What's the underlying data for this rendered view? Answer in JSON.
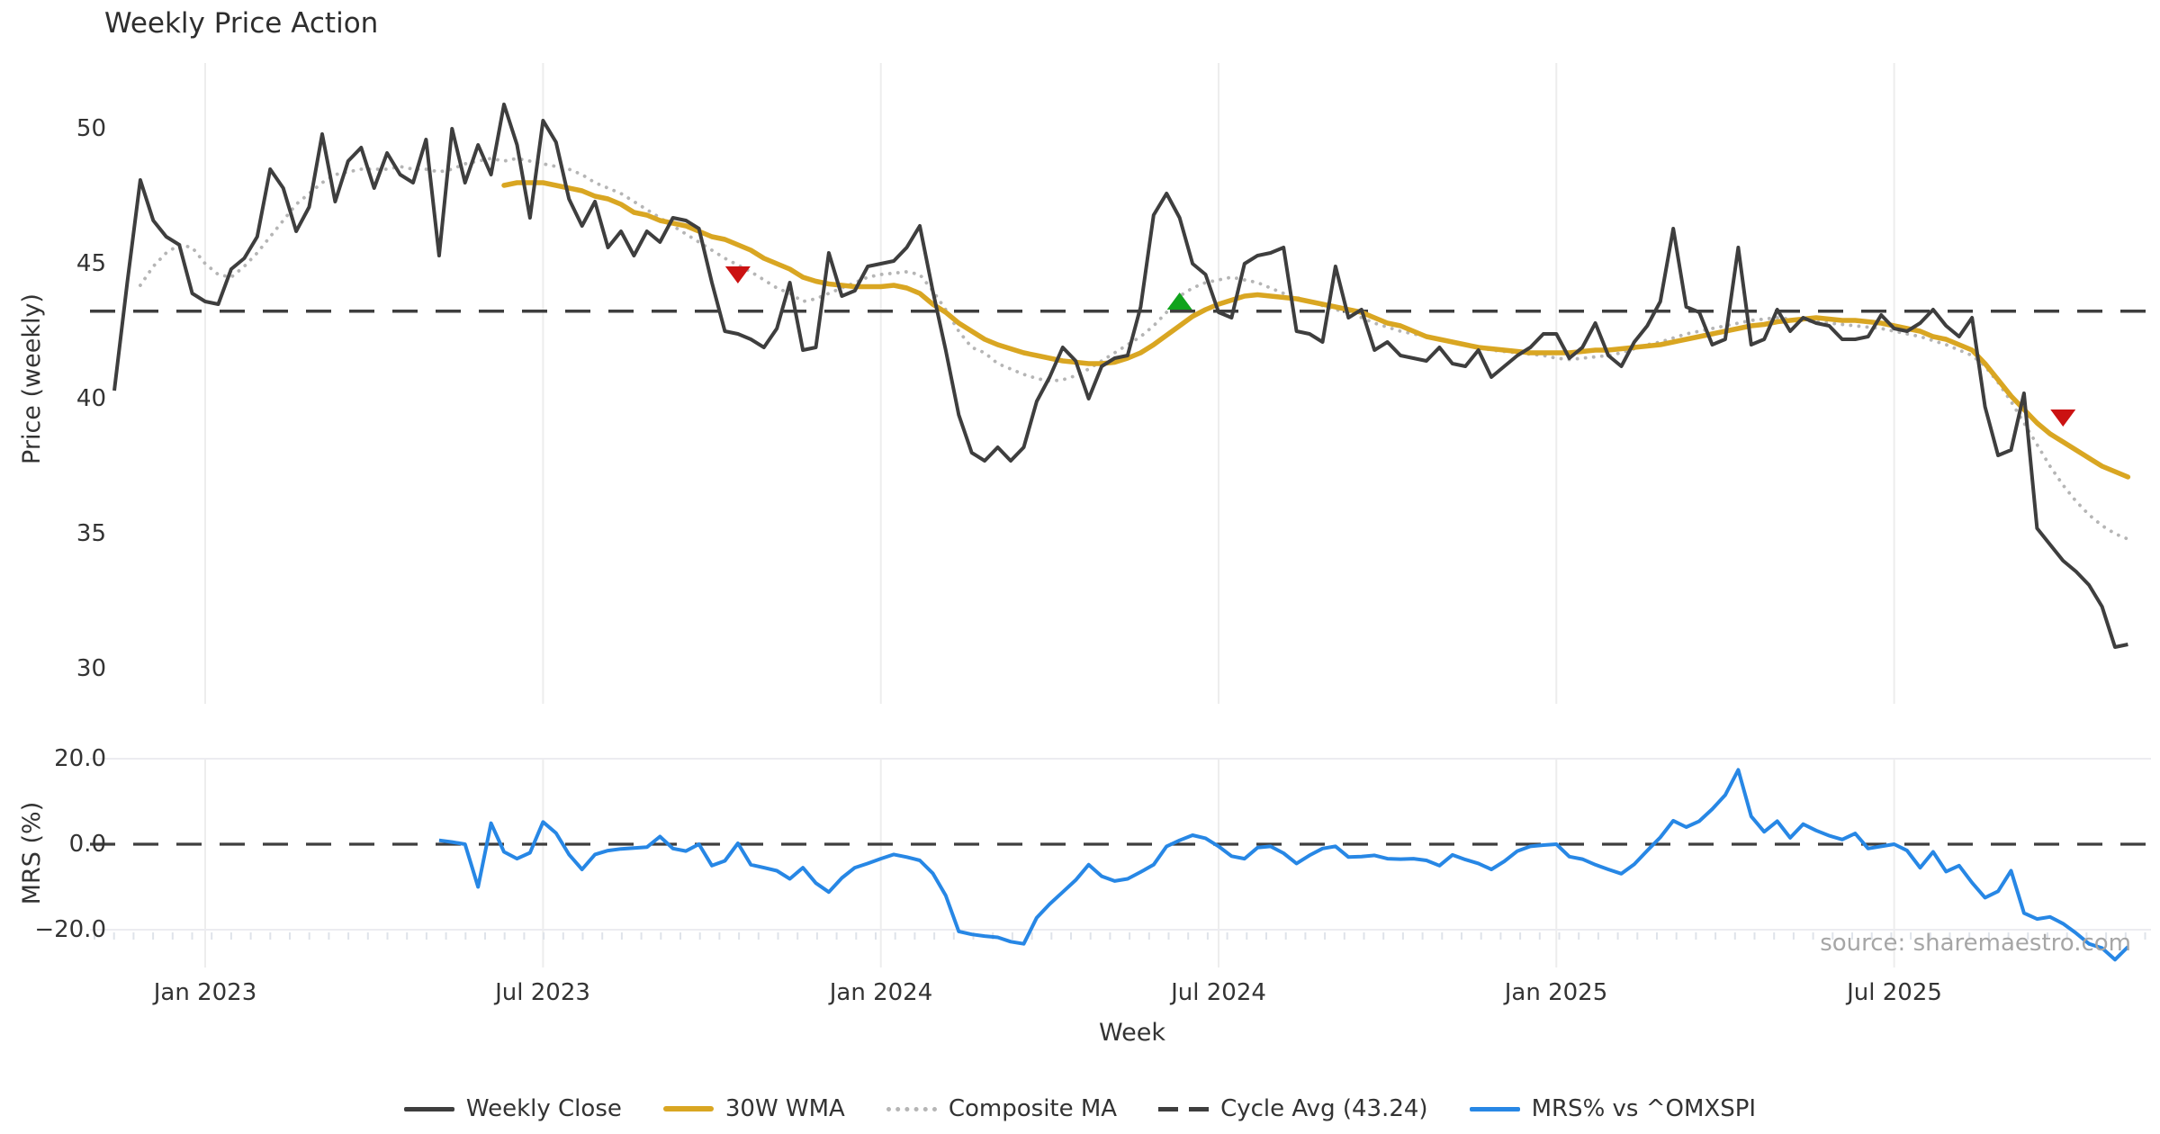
{
  "title": "Weekly Price Action",
  "source_note": "source: sharemaestro.com",
  "colors": {
    "weekly_close": "#3e3e3e",
    "wma30": "#d9a622",
    "composite_ma": "#b5b5b5",
    "cycle_avg": "#3e3e3e",
    "mrs": "#2787e5",
    "sell_marker": "#cb1212",
    "buy_marker": "#10a31c",
    "gridline": "#ededed",
    "minor_tick": "#dfe3ea",
    "text": "#333333",
    "source_text": "#a6a6a6"
  },
  "axes": {
    "price": {
      "label": "Price (weekly)",
      "tick_labels": [
        "50",
        "45",
        "40",
        "35",
        "30"
      ]
    },
    "mrs": {
      "label": "MRS (%)",
      "tick_labels": [
        "20.0",
        "0.0",
        "−20.0"
      ]
    },
    "week": {
      "label": "Week",
      "tick_labels": [
        "Jan 2023",
        "Jul 2023",
        "Jan 2024",
        "Jul 2024",
        "Jan 2025",
        "Jul 2025"
      ]
    }
  },
  "legend": {
    "items": [
      {
        "label": "Weekly Close",
        "style": "solid-dark"
      },
      {
        "label": "30W WMA",
        "style": "solid-gold"
      },
      {
        "label": "Composite MA",
        "style": "dotted-gray"
      },
      {
        "label": "Cycle Avg (43.24)",
        "style": "dashed-dark"
      },
      {
        "label": "MRS% vs ^OMXSPI",
        "style": "solid-blue"
      }
    ]
  },
  "chart_data": {
    "type": "line",
    "title": "Weekly Price Action",
    "x": {
      "label": "Week",
      "unit": "weeks",
      "total_weeks": 156,
      "tick_weeks": [
        7,
        33,
        59,
        85,
        111,
        137
      ],
      "tick_labels": [
        "Jan 2023",
        "Jul 2023",
        "Jan 2024",
        "Jul 2024",
        "Jan 2025",
        "Jul 2025"
      ]
    },
    "panels": [
      {
        "id": "price",
        "ylabel": "Price (weekly)",
        "ylim": [
          28.7,
          52.4
        ],
        "yticks": [
          30,
          35,
          40,
          45,
          50
        ],
        "cycle_avg": 43.24,
        "series": [
          {
            "name": "Weekly Close",
            "start_week": 0,
            "values": [
              40.3,
              44.3,
              48.1,
              46.6,
              46.0,
              45.7,
              43.9,
              43.6,
              43.5,
              44.8,
              45.2,
              46.0,
              48.5,
              47.8,
              46.2,
              47.1,
              49.8,
              47.3,
              48.8,
              49.3,
              47.8,
              49.1,
              48.3,
              48.0,
              49.6,
              45.3,
              50.0,
              48.0,
              49.4,
              48.3,
              50.9,
              49.4,
              46.7,
              50.3,
              49.5,
              47.4,
              46.4,
              47.3,
              45.6,
              46.2,
              45.3,
              46.2,
              45.8,
              46.7,
              46.6,
              46.3,
              44.3,
              42.5,
              42.4,
              42.2,
              41.9,
              42.6,
              44.3,
              41.8,
              41.9,
              45.4,
              43.8,
              44.0,
              44.9,
              45.0,
              45.1,
              45.6,
              46.4,
              44.0,
              41.8,
              39.4,
              38.0,
              37.7,
              38.2,
              37.7,
              38.2,
              39.9,
              40.8,
              41.9,
              41.4,
              40.0,
              41.2,
              41.5,
              41.6,
              43.4,
              46.8,
              47.6,
              46.7,
              45.0,
              44.6,
              43.2,
              43.0,
              45.0,
              45.3,
              45.4,
              45.6,
              42.5,
              42.4,
              42.1,
              44.9,
              43.0,
              43.3,
              41.8,
              42.1,
              41.6,
              41.5,
              41.4,
              41.9,
              41.3,
              41.2,
              41.8,
              40.8,
              41.2,
              41.6,
              41.9,
              42.4,
              42.4,
              41.5,
              41.9,
              42.8,
              41.6,
              41.2,
              42.1,
              42.7,
              43.6,
              46.3,
              43.4,
              43.2,
              42.0,
              42.2,
              45.6,
              42.0,
              42.2,
              43.3,
              42.5,
              43.0,
              42.8,
              42.7,
              42.2,
              42.2,
              42.3,
              43.1,
              42.6,
              42.5,
              42.8,
              43.3,
              42.7,
              42.3,
              43.0,
              39.7,
              37.9,
              38.1,
              40.2,
              35.2,
              34.6,
              34.0,
              33.6,
              33.1,
              32.3,
              30.8,
              30.9
            ]
          },
          {
            "name": "30W WMA",
            "start_week": 30,
            "values": [
              47.9,
              48.0,
              48.0,
              48.0,
              47.9,
              47.8,
              47.7,
              47.5,
              47.4,
              47.2,
              46.9,
              46.8,
              46.6,
              46.5,
              46.4,
              46.2,
              46.0,
              45.9,
              45.7,
              45.5,
              45.2,
              45.0,
              44.8,
              44.5,
              44.35,
              44.25,
              44.2,
              44.15,
              44.15,
              44.15,
              44.2,
              44.1,
              43.9,
              43.5,
              43.2,
              42.8,
              42.5,
              42.2,
              42.0,
              41.85,
              41.7,
              41.6,
              41.5,
              41.4,
              41.35,
              41.3,
              41.3,
              41.35,
              41.5,
              41.7,
              42.0,
              42.35,
              42.7,
              43.05,
              43.3,
              43.5,
              43.65,
              43.8,
              43.85,
              43.8,
              43.75,
              43.7,
              43.6,
              43.5,
              43.4,
              43.3,
              43.2,
              43.0,
              42.8,
              42.7,
              42.5,
              42.3,
              42.2,
              42.1,
              42.0,
              41.9,
              41.85,
              41.8,
              41.75,
              41.7,
              41.7,
              41.7,
              41.7,
              41.75,
              41.8,
              41.8,
              41.85,
              41.9,
              41.95,
              42.0,
              42.1,
              42.2,
              42.3,
              42.4,
              42.5,
              42.6,
              42.7,
              42.75,
              42.85,
              42.9,
              42.95,
              43.0,
              42.95,
              42.9,
              42.9,
              42.85,
              42.8,
              42.7,
              42.6,
              42.5,
              42.3,
              42.2,
              42.0,
              41.8,
              41.3,
              40.7,
              40.1,
              39.6,
              39.1,
              38.7,
              38.4,
              38.1,
              37.8,
              37.5,
              37.3,
              37.1
            ]
          },
          {
            "name": "Composite MA",
            "start_week": 2,
            "values": [
              44.2,
              44.9,
              45.4,
              45.7,
              45.6,
              45.0,
              44.6,
              44.5,
              44.9,
              45.4,
              46.0,
              46.6,
              47.2,
              47.6,
              48.0,
              48.3,
              48.4,
              48.5,
              48.5,
              48.5,
              48.6,
              48.5,
              48.5,
              48.4,
              48.5,
              48.7,
              48.8,
              48.9,
              48.8,
              48.9,
              48.8,
              48.7,
              48.6,
              48.5,
              48.3,
              48.0,
              47.8,
              47.6,
              47.3,
              47.0,
              46.7,
              46.4,
              46.1,
              45.8,
              45.5,
              45.2,
              44.95,
              44.7,
              44.4,
              44.1,
              43.9,
              43.6,
              43.7,
              43.9,
              44.1,
              44.3,
              44.5,
              44.6,
              44.65,
              44.7,
              44.6,
              44.0,
              43.3,
              42.5,
              41.9,
              41.7,
              41.3,
              41.1,
              40.9,
              40.75,
              40.65,
              40.7,
              40.85,
              41.1,
              41.4,
              41.7,
              42.0,
              42.3,
              42.7,
              43.2,
              43.8,
              44.1,
              44.3,
              44.4,
              44.5,
              44.4,
              44.3,
              44.1,
              43.9,
              43.75,
              43.6,
              43.45,
              43.3,
              43.2,
              43.0,
              42.8,
              42.65,
              42.5,
              42.4,
              42.3,
              42.2,
              42.1,
              42.0,
              41.9,
              41.8,
              41.75,
              41.7,
              41.65,
              41.6,
              41.5,
              41.45,
              41.5,
              41.55,
              41.6,
              41.7,
              41.85,
              42.0,
              42.1,
              42.25,
              42.4,
              42.5,
              42.6,
              42.7,
              42.8,
              42.9,
              42.95,
              43.0,
              42.95,
              42.9,
              42.85,
              42.8,
              42.75,
              42.7,
              42.65,
              42.6,
              42.5,
              42.4,
              42.3,
              42.15,
              42.0,
              41.8,
              41.6,
              41.2,
              40.6,
              39.9,
              39.1,
              38.3,
              37.5,
              36.8,
              36.2,
              35.7,
              35.3,
              35.0,
              34.8
            ]
          }
        ],
        "markers": {
          "sell": [
            {
              "week": 48,
              "value": 44.6
            },
            {
              "week": 150,
              "value": 39.3
            }
          ],
          "buy": [
            {
              "week": 82,
              "value": 43.6
            }
          ]
        }
      },
      {
        "id": "mrs",
        "ylabel": "MRS (%)",
        "ylim": [
          -30,
          22
        ],
        "yticks": [
          -20,
          0,
          20
        ],
        "zero_line": 0,
        "series": [
          {
            "name": "MRS% vs ^OMXSPI",
            "start_week": 25,
            "values": [
              0.9,
              0.5,
              0.0,
              -10.0,
              4.9,
              -1.8,
              -3.4,
              -2.0,
              5.2,
              2.6,
              -2.4,
              -5.9,
              -2.4,
              -1.5,
              -1.1,
              -0.9,
              -0.7,
              1.8,
              -1.0,
              -1.6,
              0.0,
              -5.0,
              -3.9,
              0.2,
              -4.8,
              -5.5,
              -6.2,
              -8.1,
              -5.5,
              -9.1,
              -11.2,
              -7.9,
              -5.5,
              -4.5,
              -3.4,
              -2.4,
              -3.0,
              -3.8,
              -6.8,
              -12.0,
              -20.4,
              -21.1,
              -21.5,
              -21.8,
              -22.8,
              -23.3,
              -17.2,
              -14.0,
              -11.2,
              -8.4,
              -4.8,
              -7.5,
              -8.6,
              -8.1,
              -6.5,
              -4.8,
              -0.5,
              0.9,
              2.1,
              1.4,
              -0.5,
              -2.8,
              -3.4,
              -0.8,
              -0.5,
              -2.1,
              -4.5,
              -2.6,
              -1.0,
              -0.5,
              -3.0,
              -2.9,
              -2.6,
              -3.4,
              -3.5,
              -3.4,
              -3.8,
              -5.0,
              -2.5,
              -3.6,
              -4.5,
              -5.9,
              -4.0,
              -1.6,
              -0.5,
              -0.2,
              0.0,
              -2.9,
              -3.5,
              -4.8,
              -5.9,
              -6.9,
              -4.7,
              -1.5,
              1.6,
              5.5,
              4.0,
              5.4,
              8.2,
              11.5,
              17.4,
              6.5,
              2.9,
              5.4,
              1.5,
              4.7,
              3.2,
              2.0,
              1.1,
              2.5,
              -1.0,
              -0.5,
              0.0,
              -1.5,
              -5.5,
              -1.8,
              -6.4,
              -5.0,
              -9.0,
              -12.5,
              -11.0,
              -6.2,
              -16.1,
              -17.5,
              -17.0,
              -18.6,
              -20.8,
              -23.3,
              -24.3,
              -27.0,
              -24.0
            ]
          }
        ]
      }
    ]
  }
}
